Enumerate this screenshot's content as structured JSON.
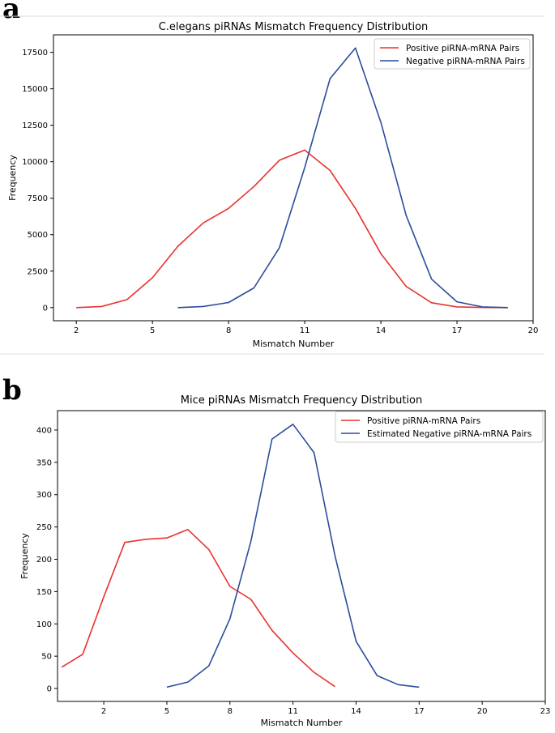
{
  "panel_labels": [
    "a",
    "b"
  ],
  "chart_data": [
    {
      "type": "line",
      "title": "C.elegans piRNAs Mismatch Frequency Distribution",
      "xlabel": "Mismatch Number",
      "ylabel": "Frequency",
      "xlim": [
        1.1,
        20.0
      ],
      "ylim": [
        -900,
        18700
      ],
      "xticks": [
        2,
        5,
        8,
        11,
        14,
        17,
        20
      ],
      "yticks": [
        0,
        2500,
        5000,
        7500,
        10000,
        12500,
        15000,
        17500
      ],
      "legend_position": "top-right",
      "series": [
        {
          "name": "Positive piRNA-mRNA Pairs",
          "color": "#e8332e",
          "x": [
            2,
            3,
            4,
            5,
            6,
            7,
            8,
            9,
            10,
            11,
            12,
            13,
            14,
            15,
            16,
            17,
            18,
            19
          ],
          "y": [
            0,
            80,
            550,
            2050,
            4200,
            5800,
            6800,
            8300,
            10100,
            10800,
            9400,
            6800,
            3700,
            1450,
            330,
            50,
            10,
            0
          ]
        },
        {
          "name": "Negative piRNA-mRNA Pairs",
          "color": "#2c4c9c",
          "x": [
            6,
            7,
            8,
            9,
            10,
            11,
            12,
            13,
            14,
            15,
            16,
            17,
            18,
            19
          ],
          "y": [
            0,
            80,
            350,
            1350,
            4100,
            9600,
            15700,
            17800,
            12700,
            6300,
            1950,
            400,
            50,
            0
          ]
        }
      ]
    },
    {
      "type": "line",
      "title": "Mice piRNAs Mismatch Frequency Distribution",
      "xlabel": "Mismatch Number",
      "ylabel": "Frequency",
      "xlim": [
        -0.2,
        23.0
      ],
      "ylim": [
        -20,
        430
      ],
      "xticks": [
        2,
        5,
        8,
        11,
        14,
        17,
        20,
        23
      ],
      "yticks": [
        0,
        50,
        100,
        150,
        200,
        250,
        300,
        350,
        400
      ],
      "legend_position": "top-right",
      "series": [
        {
          "name": "Positive piRNA-mRNA Pairs",
          "color": "#e8332e",
          "x": [
            0,
            1,
            2,
            3,
            4,
            5,
            6,
            7,
            8,
            9,
            10,
            11,
            12,
            13
          ],
          "y": [
            33,
            53,
            142,
            226,
            231,
            233,
            246,
            215,
            158,
            138,
            90,
            55,
            25,
            3
          ]
        },
        {
          "name": "Estimated Negative piRNA-mRNA Pairs",
          "color": "#2c4c9c",
          "x": [
            5,
            6,
            7,
            8,
            9,
            10,
            11,
            12,
            13,
            14,
            15,
            16,
            17
          ],
          "y": [
            2,
            10,
            35,
            108,
            228,
            386,
            409,
            365,
            205,
            73,
            20,
            6,
            2
          ]
        }
      ]
    }
  ]
}
